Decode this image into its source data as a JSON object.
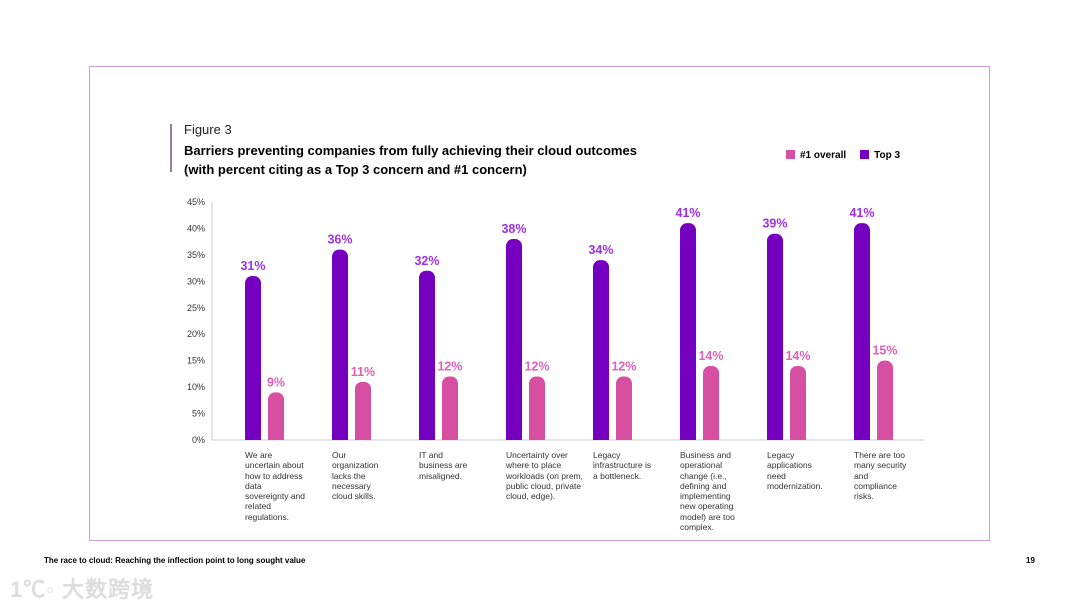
{
  "figure_label": "Figure 3",
  "chart_data": {
    "type": "bar",
    "title": "Barriers preventing companies from fully achieving their cloud outcomes",
    "subtitle": "(with percent citing as a Top 3 concern and #1 concern)",
    "categories": [
      "We are uncertain about how to address data sovereignty and related regulations.",
      "Our organization lacks the necessary cloud skills.",
      "IT and business are misaligned.",
      "Uncertainty over where to place workloads (on prem, public cloud, private cloud, edge).",
      "Legacy infrastructure is a bottleneck.",
      "Business and operational change (i.e., defining and implementing new operating model) are too complex.",
      "Legacy applications need modernization.",
      "There are too many security and compliance risks."
    ],
    "series": [
      {
        "name": "Top 3",
        "color": "#7500c0",
        "label_color": "#a030e8",
        "values": [
          31,
          36,
          32,
          38,
          34,
          41,
          39,
          41
        ]
      },
      {
        "name": "#1 overall",
        "color": "#d64fa3",
        "label_color": "#e060b6",
        "values": [
          9,
          11,
          12,
          12,
          12,
          14,
          14,
          15
        ]
      }
    ],
    "value_labels": {
      "Top 3": [
        "31%",
        "36%",
        "32%",
        "38%",
        "34%",
        "41%",
        "39%",
        "41%"
      ],
      "#1 overall": [
        "9%",
        "11%",
        "12%",
        "12%",
        "12%",
        "14%",
        "14%",
        "15%"
      ]
    },
    "legend": [
      "#1 overall",
      "Top 3"
    ],
    "legend_position": "top-right",
    "yticks": [
      "0%",
      "5%",
      "10%",
      "15%",
      "20%",
      "25%",
      "30%",
      "35%",
      "40%",
      "45%"
    ],
    "ylim": [
      0,
      45
    ],
    "xlabel": "",
    "ylabel": ""
  },
  "footer": {
    "text": "The race to cloud:  Reaching the inflection point to long sought value",
    "page": "19"
  },
  "watermark": "大数跨境"
}
